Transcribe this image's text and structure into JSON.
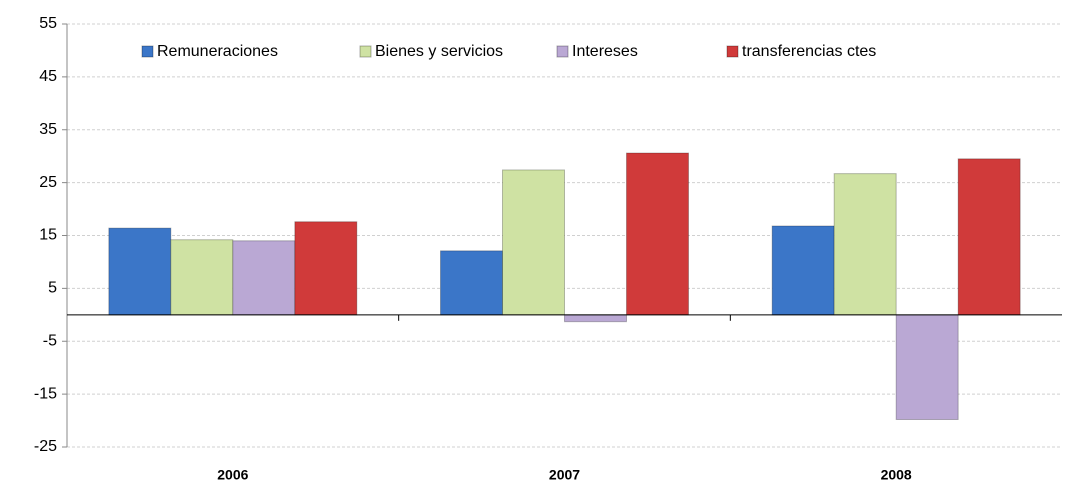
{
  "chart_data": {
    "type": "bar",
    "categories": [
      "2006",
      "2007",
      "2008"
    ],
    "series": [
      {
        "name": "Remuneraciones",
        "color": "#3b76c8",
        "values": [
          16.4,
          12.1,
          16.8
        ]
      },
      {
        "name": "Bienes y servicios",
        "color": "#cfe2a3",
        "values": [
          14.2,
          27.4,
          26.7
        ]
      },
      {
        "name": "Intereses",
        "color": "#baa8d4",
        "values": [
          14.0,
          -1.3,
          -19.8
        ]
      },
      {
        "name": "transferencias ctes",
        "color": "#d03a3a",
        "values": [
          17.6,
          30.6,
          29.5
        ]
      }
    ],
    "ylim": [
      -25,
      55
    ],
    "yticks": [
      -25,
      -15,
      -5,
      5,
      15,
      25,
      35,
      45,
      55
    ],
    "grid": true,
    "legend": "top"
  }
}
